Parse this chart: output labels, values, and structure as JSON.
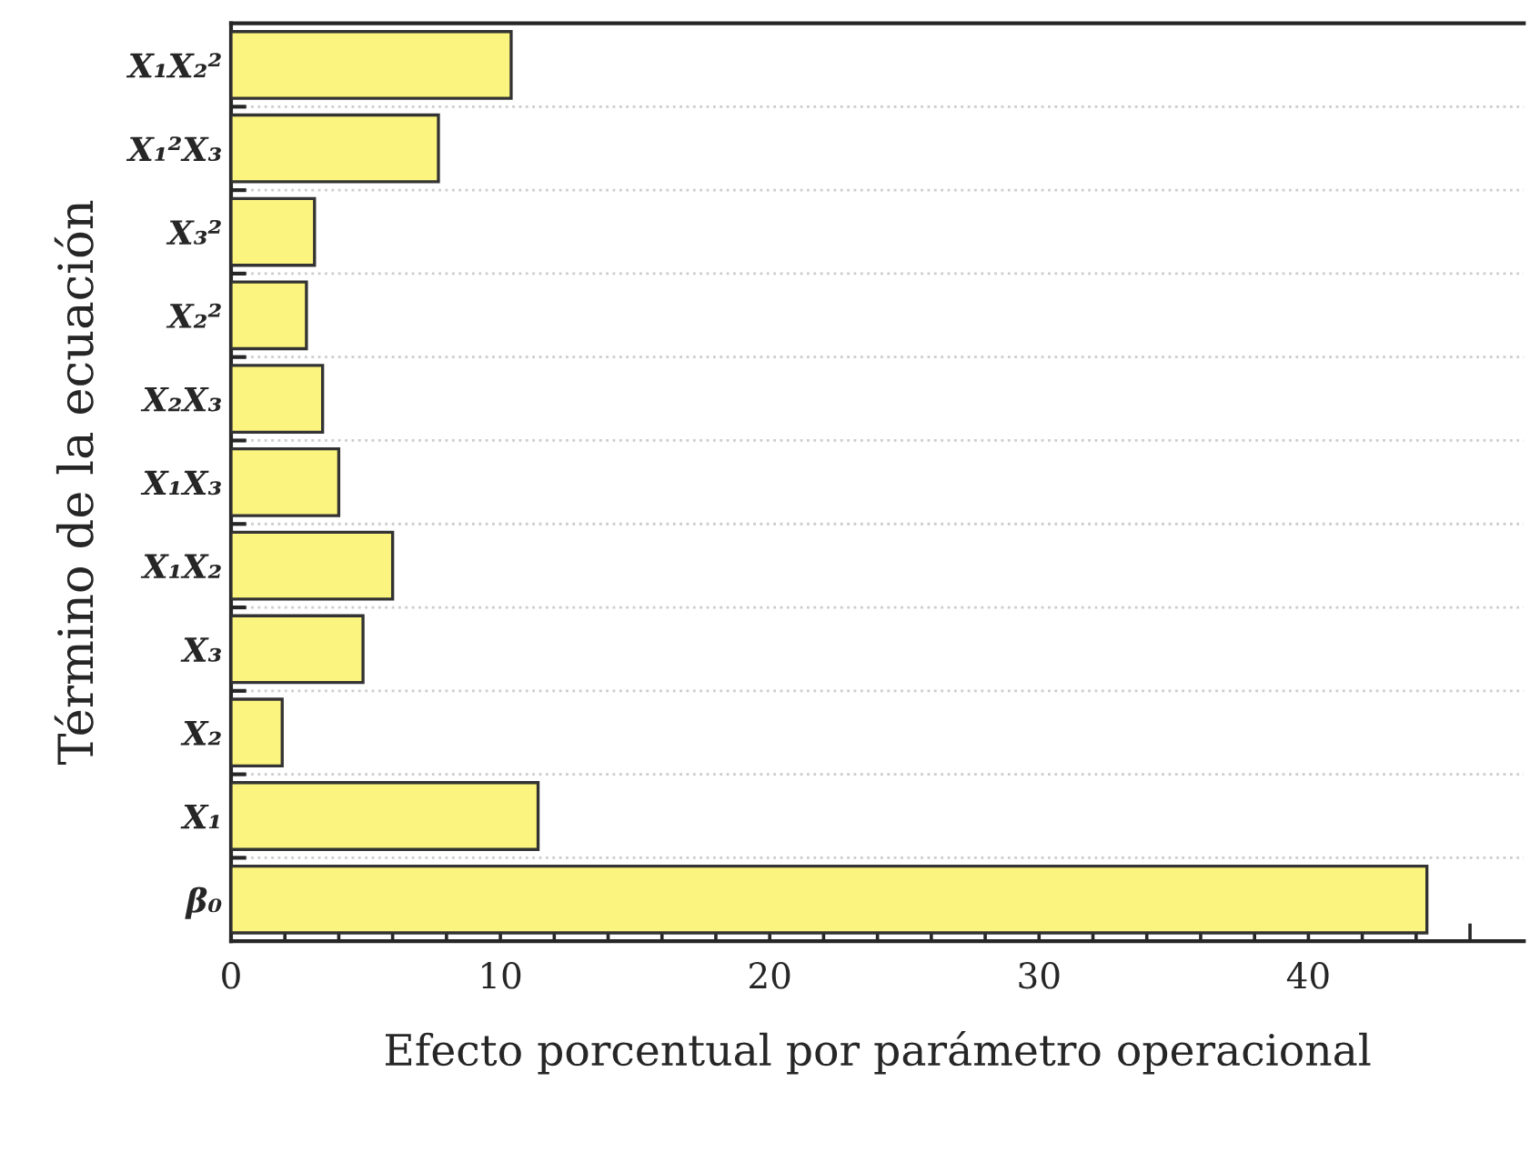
{
  "chart_data": {
    "type": "bar",
    "orientation": "horizontal",
    "xlabel": "Efecto porcentual por parámetro operacional",
    "ylabel": "Término de la ecuación",
    "categories": [
      "X₁X₂²",
      "X₁²X₃",
      "X₃²",
      "X₂²",
      "X₂X₃",
      "X₁X₃",
      "X₁X₂",
      "X₃",
      "X₂",
      "X₁",
      "β₀"
    ],
    "values": [
      10.4,
      7.7,
      3.1,
      2.8,
      3.4,
      4.0,
      6.0,
      4.9,
      1.9,
      11.4,
      44.4
    ],
    "color": "#fbf47f",
    "xlim": [
      0,
      48
    ],
    "xticks": [
      0,
      {
        "value": 2,
        "label": null
      },
      {
        "value": 4,
        "label": null
      },
      {
        "value": 6,
        "label": null
      },
      {
        "value": 8,
        "label": null
      },
      10,
      {
        "value": 12,
        "label": null
      },
      {
        "value": 14,
        "label": null
      },
      {
        "value": 16,
        "label": null
      },
      {
        "value": 18,
        "label": null
      },
      20,
      {
        "value": 22,
        "label": null
      },
      {
        "value": 24,
        "label": null
      },
      {
        "value": 26,
        "label": null
      },
      {
        "value": 28,
        "label": null
      },
      30,
      {
        "value": 32,
        "label": null
      },
      {
        "value": 34,
        "label": null
      },
      {
        "value": 36,
        "label": null
      },
      {
        "value": 38,
        "label": null
      },
      40,
      {
        "value": 42,
        "label": null
      },
      {
        "value": 44,
        "label": null
      },
      {
        "value": 46,
        "label": null
      }
    ],
    "grid": "y"
  }
}
